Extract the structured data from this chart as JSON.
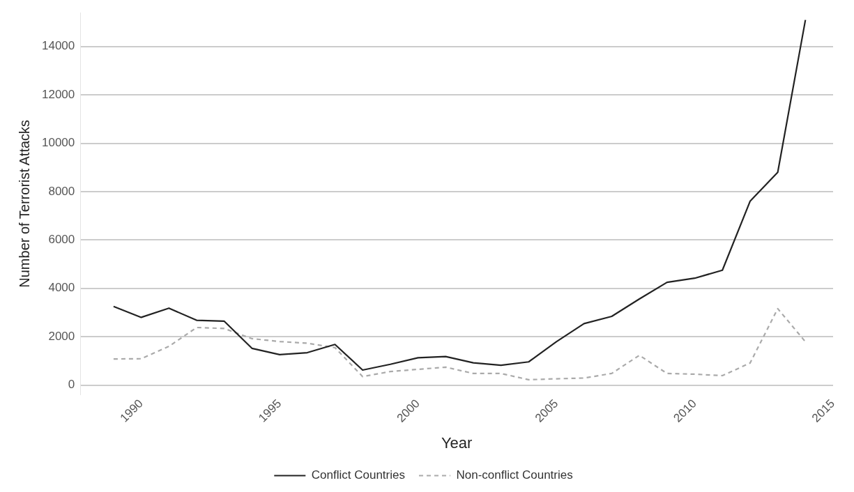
{
  "chart_data": {
    "type": "line",
    "xlabel": "Year",
    "ylabel": "Number of Terrorist Attacks",
    "x": [
      1989,
      1990,
      1991,
      1992,
      1993,
      1994,
      1995,
      1996,
      1997,
      1998,
      1999,
      2000,
      2001,
      2002,
      2003,
      2004,
      2005,
      2006,
      2007,
      2008,
      2009,
      2010,
      2011,
      2012,
      2013,
      2014
    ],
    "series": [
      {
        "name": "Conflict Countries",
        "color": "#222222",
        "line_style": "solid",
        "values": [
          3250,
          2800,
          3180,
          2680,
          2640,
          1520,
          1260,
          1340,
          1680,
          620,
          860,
          1130,
          1180,
          920,
          820,
          960,
          1790,
          2540,
          2840,
          3560,
          4250,
          4420,
          4750,
          7600,
          8800,
          15100
        ]
      },
      {
        "name": "Non-conflict Countries",
        "color": "#aaaaaa",
        "line_style": "dashed",
        "values": [
          1080,
          1090,
          1600,
          2380,
          2340,
          1920,
          1800,
          1730,
          1550,
          350,
          560,
          650,
          740,
          480,
          480,
          220,
          260,
          290,
          480,
          1230,
          480,
          450,
          390,
          910,
          3160,
          1790
        ]
      }
    ],
    "xlim": [
      1987.8,
      2015
    ],
    "xticks": [
      1990,
      1995,
      2000,
      2005,
      2010,
      2015
    ],
    "ylim": [
      -400,
      15400
    ],
    "yticks": [
      0,
      2000,
      4000,
      6000,
      8000,
      10000,
      12000,
      14000
    ],
    "grid": "y",
    "legend": "bottom",
    "marker": "none"
  }
}
